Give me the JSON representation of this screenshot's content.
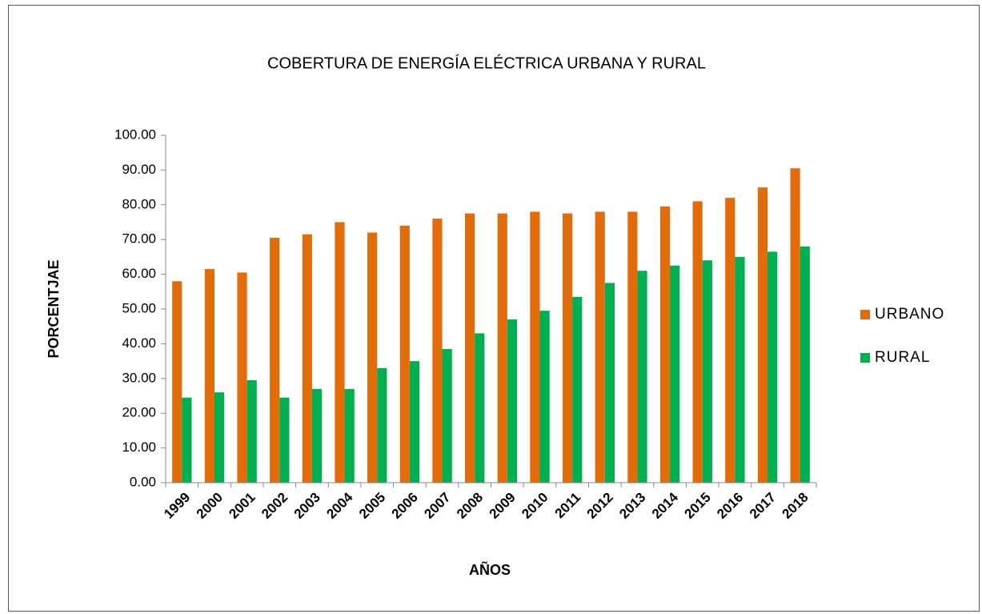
{
  "chart_data": {
    "type": "bar",
    "title": "COBERTURA DE ENERGÍA ELÉCTRICA URBANA Y RURAL",
    "x_label": "AÑOS",
    "y_label": "PORCENTJAE",
    "categories": [
      "1999",
      "2000",
      "2001",
      "2002",
      "2003",
      "2004",
      "2005",
      "2006",
      "2007",
      "2008",
      "2009",
      "2010",
      "2011",
      "2012",
      "2013",
      "2014",
      "2015",
      "2016",
      "2017",
      "2018"
    ],
    "series": [
      {
        "name": "URBANO",
        "color": "#e36c0a",
        "values": [
          58,
          61.5,
          60.5,
          70.5,
          71.5,
          75,
          72,
          74,
          76,
          77.5,
          77.5,
          78,
          77.5,
          78,
          78,
          79.5,
          81,
          82,
          85,
          90.5
        ]
      },
      {
        "name": "RURAL",
        "color": "#00b050",
        "values": [
          24.5,
          26,
          29.5,
          24.5,
          27,
          27,
          33,
          35,
          38.5,
          43,
          47,
          49.5,
          53.5,
          57.5,
          61,
          62.5,
          64,
          65,
          66.5,
          68
        ]
      }
    ],
    "ylim": [
      0,
      100
    ],
    "yticks": [
      {
        "value": 0,
        "label": "0.00"
      },
      {
        "value": 10,
        "label": "10.00"
      },
      {
        "value": 20,
        "label": "20.00"
      },
      {
        "value": 30,
        "label": "30.00"
      },
      {
        "value": 40,
        "label": "40.00"
      },
      {
        "value": 50,
        "label": "50.00"
      },
      {
        "value": 60,
        "label": "60.00"
      },
      {
        "value": 70,
        "label": "70.00"
      },
      {
        "value": 80,
        "label": "80.00"
      },
      {
        "value": 90,
        "label": "90.00"
      },
      {
        "value": 100,
        "label": "100.00"
      }
    ],
    "grid": false,
    "legend": "right"
  }
}
